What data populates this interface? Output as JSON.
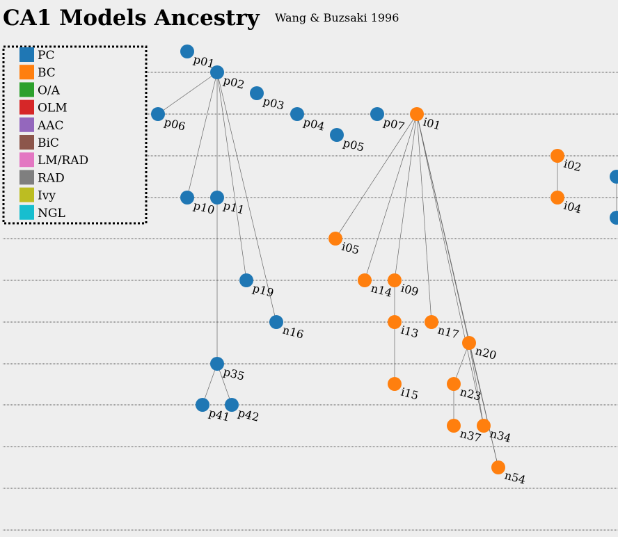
{
  "title": "CA1 Models Ancestry",
  "subtitle": "Wang & Buzsaki 1996",
  "legend": [
    {
      "label": "PC",
      "color": "#1f77b4"
    },
    {
      "label": "BC",
      "color": "#ff7f0e"
    },
    {
      "label": "O/A",
      "color": "#2ca02c"
    },
    {
      "label": "OLM",
      "color": "#d62728"
    },
    {
      "label": "AAC",
      "color": "#9467bd"
    },
    {
      "label": "BiC",
      "color": "#8c564b"
    },
    {
      "label": "LM/RAD",
      "color": "#e377c2"
    },
    {
      "label": "RAD",
      "color": "#7f7f7f"
    },
    {
      "label": "Ivy",
      "color": "#bcbd22"
    },
    {
      "label": "NGL",
      "color": "#17becf"
    }
  ],
  "nodes": [
    {
      "id": "p01",
      "type": "PC"
    },
    {
      "id": "p02",
      "type": "PC"
    },
    {
      "id": "p03",
      "type": "PC"
    },
    {
      "id": "p04",
      "type": "PC"
    },
    {
      "id": "p05",
      "type": "PC"
    },
    {
      "id": "p06",
      "type": "PC"
    },
    {
      "id": "p07",
      "type": "PC"
    },
    {
      "id": "p10",
      "type": "PC"
    },
    {
      "id": "p11",
      "type": "PC"
    },
    {
      "id": "p19",
      "type": "PC"
    },
    {
      "id": "n16",
      "type": "PC"
    },
    {
      "id": "p35",
      "type": "PC"
    },
    {
      "id": "p41",
      "type": "PC"
    },
    {
      "id": "p42",
      "type": "PC"
    },
    {
      "id": "i01",
      "type": "BC"
    },
    {
      "id": "i02",
      "type": "BC"
    },
    {
      "id": "i04",
      "type": "BC"
    },
    {
      "id": "i05",
      "type": "BC"
    },
    {
      "id": "n14",
      "type": "BC"
    },
    {
      "id": "i09",
      "type": "BC"
    },
    {
      "id": "i13",
      "type": "BC"
    },
    {
      "id": "n17",
      "type": "BC"
    },
    {
      "id": "n20",
      "type": "BC"
    },
    {
      "id": "i15",
      "type": "BC"
    },
    {
      "id": "n23",
      "type": "BC"
    },
    {
      "id": "n37",
      "type": "BC"
    },
    {
      "id": "n34",
      "type": "BC"
    },
    {
      "id": "n54",
      "type": "BC"
    },
    {
      "id": "",
      "type": "PC"
    },
    {
      "id": "",
      "type": "PC"
    }
  ],
  "edges": [
    [
      "p02",
      "p06"
    ],
    [
      "p02",
      "p10"
    ],
    [
      "p02",
      "p11"
    ],
    [
      "p02",
      "p19"
    ],
    [
      "p02",
      "n16"
    ],
    [
      "p11",
      "p35"
    ],
    [
      "p35",
      "p41"
    ],
    [
      "p35",
      "p42"
    ],
    [
      "i01",
      "i05"
    ],
    [
      "i01",
      "n14"
    ],
    [
      "i01",
      "i09"
    ],
    [
      "i01",
      "n17"
    ],
    [
      "i01",
      "n20"
    ],
    [
      "i01",
      "n34"
    ],
    [
      "i01",
      "n54"
    ],
    [
      "i09",
      "i13"
    ],
    [
      "i13",
      "i15"
    ],
    [
      "n20",
      "n23"
    ],
    [
      "n20",
      "n34"
    ],
    [
      "n20",
      "n54"
    ],
    [
      "n23",
      "n37"
    ],
    [
      "i02",
      "i04"
    ]
  ]
}
